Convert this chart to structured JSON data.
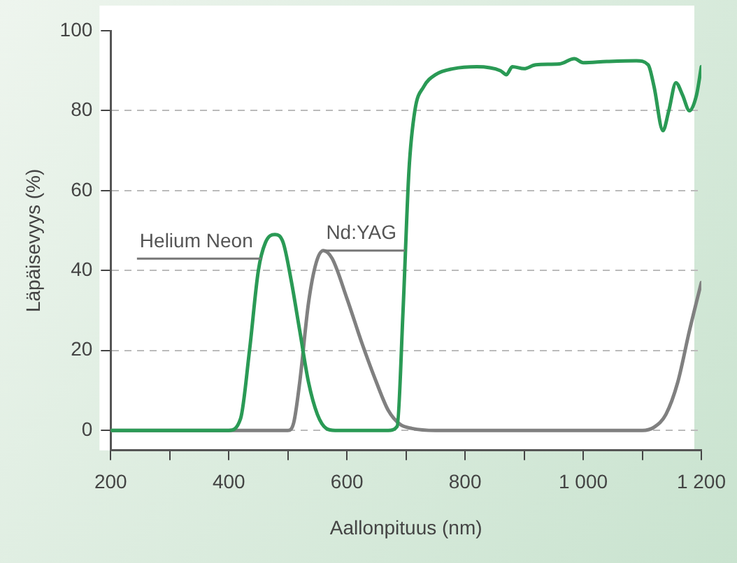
{
  "chart_data": {
    "type": "line",
    "xlabel": "Aallonpituus (nm)",
    "ylabel": "Läpäisevyys (%)",
    "xlim": [
      200,
      1200
    ],
    "xticks": [
      200,
      {
        "value": 300,
        "label": null
      },
      400,
      {
        "value": 500,
        "label": null
      },
      600,
      {
        "value": 700,
        "label": null
      },
      800,
      {
        "value": 900,
        "label": null
      },
      {
        "value": 1000,
        "label": "1 000"
      },
      {
        "value": 1100,
        "label": null
      },
      {
        "value": 1200,
        "label": "1 200"
      }
    ],
    "ylim": [
      -5,
      100
    ],
    "yticks": [
      0,
      20,
      40,
      60,
      80,
      100
    ],
    "grid": "y",
    "legend": false,
    "marker": "none",
    "line_style": "solid",
    "annotations": [
      {
        "text": "Helium Neon",
        "x": 455,
        "y": 43
      },
      {
        "text": "Nd:YAG",
        "x": 560,
        "y": 45
      }
    ],
    "series": [
      {
        "color": "#2a9a55",
        "x": [
          200,
          400,
          420,
          435,
          450,
          462,
          478,
          492,
          505,
          520,
          535,
          550,
          565,
          580,
          670,
          685,
          695,
          705,
          715,
          730,
          750,
          780,
          820,
          860,
          870,
          880,
          900,
          920,
          960,
          985,
          1000,
          1040,
          1090,
          1110,
          1120,
          1135,
          1145,
          1157,
          1168,
          1180,
          1192,
          1200
        ],
        "values": [
          0,
          0,
          3,
          20,
          40,
          47,
          49,
          47,
          38,
          25,
          12,
          4,
          0.5,
          0,
          0,
          1,
          30,
          65,
          80,
          86,
          89,
          90.5,
          91,
          90,
          89,
          91,
          90.5,
          91.5,
          91.7,
          93,
          92,
          92.3,
          92.5,
          91.5,
          86,
          75,
          80,
          87,
          84,
          80,
          84,
          91
        ]
      },
      {
        "color": "#808080",
        "x": [
          200,
          500,
          510,
          520,
          535,
          548,
          560,
          575,
          600,
          625,
          650,
          670,
          690,
          710,
          750,
          1100,
          1120,
          1140,
          1160,
          1180,
          1200
        ],
        "values": [
          0,
          0,
          2,
          12,
          32,
          42,
          45,
          43,
          33,
          22,
          12,
          5,
          1.5,
          0.5,
          0,
          0,
          0.8,
          4,
          12,
          25,
          37
        ]
      }
    ]
  }
}
